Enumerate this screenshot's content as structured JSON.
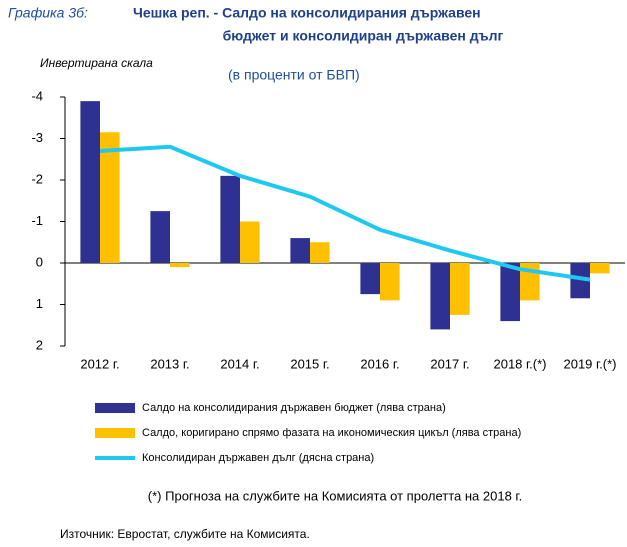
{
  "chart_data": {
    "type": "bar",
    "title_prefix": "Графика 3б:",
    "title": [
      "Чешка реп. - Салдо на консолидирания държавен",
      "бюджет и консолидиран държавен дълг"
    ],
    "subtitle": "(в проценти от БВП)",
    "y_axis_label": "Инвертирана скала",
    "categories": [
      "2012 г.",
      "2013 г.",
      "2014 г.",
      "2015 г.",
      "2016 г.",
      "2017 г.",
      "2018 г.(*)",
      "2019 г.(*)"
    ],
    "series": [
      {
        "name": "Салдо  на консолидирания  държавен бюджет (лява страна)",
        "type": "bar",
        "color": "#2e3192",
        "values": [
          -3.9,
          -1.25,
          -2.1,
          -0.6,
          0.75,
          1.6,
          1.4,
          0.85
        ]
      },
      {
        "name": "Салдо,  коригирано спрямо фазата на икономическия цикъл (лява страна)",
        "type": "bar",
        "color": "#ffc000",
        "values": [
          -3.15,
          0.1,
          -1.0,
          -0.5,
          0.9,
          1.25,
          0.9,
          0.25
        ]
      },
      {
        "name": "Консолидиран  държавен дълг (дясна страна)",
        "type": "line",
        "color": "#1ec8f0",
        "values": [
          -2.7,
          -2.8,
          -2.1,
          -1.6,
          -0.8,
          -0.3,
          0.15,
          0.4
        ]
      }
    ],
    "ylim": [
      -4,
      2
    ],
    "inverted": true,
    "yticks": [
      -4,
      -3,
      -2,
      -1,
      0,
      1,
      2
    ],
    "footnote": "(*) Прогноза на службите на Комисията от пролетта на 2018 г.",
    "source": "Източник: Евростат, службите на Комисията."
  }
}
